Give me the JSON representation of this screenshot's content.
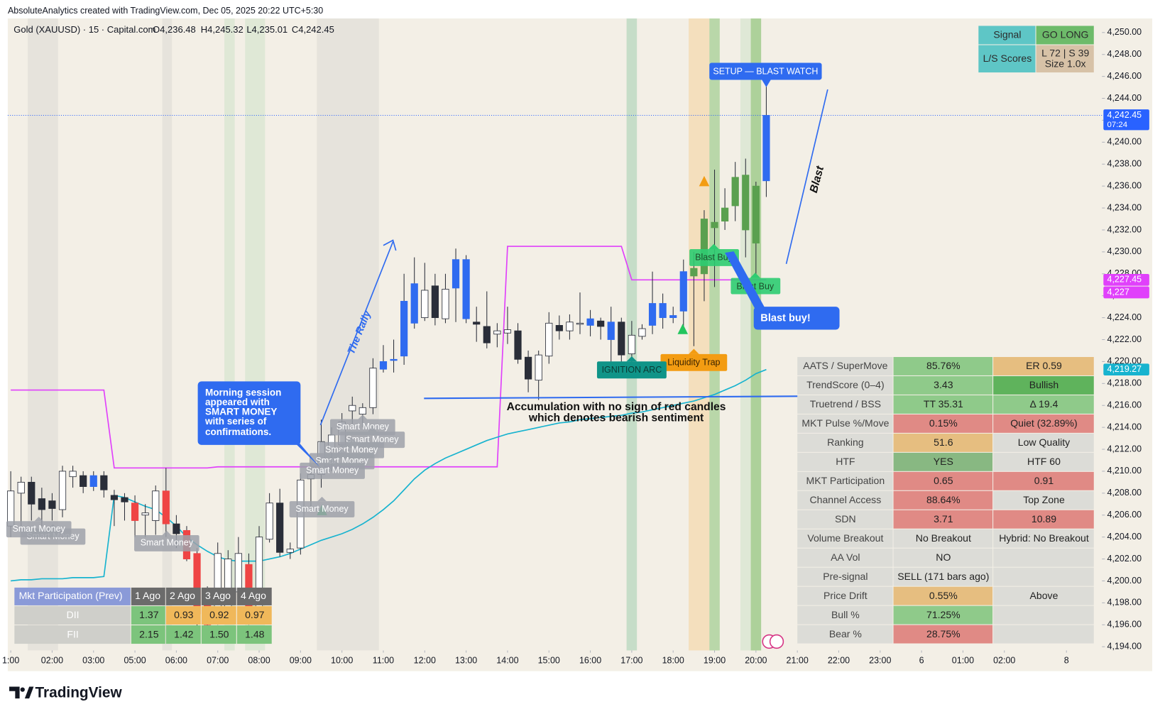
{
  "header": {
    "credit": "AbsoluteAnalytics created with TradingView.com, Dec 05, 2025 20:22 UTC+5:30",
    "symbol": "Gold (XAUUSD) · 15 · Capital.com",
    "ohlc": [
      "O4,236.48",
      "H4,245.32",
      "L4,235.01",
      "C4,242.45"
    ]
  },
  "footer": {
    "brand": "TradingView"
  },
  "chart_data": {
    "type": "candlestick",
    "x": [
      0,
      1,
      2,
      3,
      4,
      5,
      6,
      7,
      8,
      9,
      10,
      11,
      12,
      13,
      14,
      15,
      16,
      17,
      18,
      19,
      20,
      21,
      22,
      23,
      24,
      25,
      26,
      27,
      28,
      29,
      30,
      31,
      32,
      33,
      34,
      35,
      36,
      37,
      38,
      39,
      40,
      41,
      42,
      43,
      44,
      45,
      46,
      47,
      48,
      49,
      50,
      51,
      52,
      53,
      54,
      55,
      56,
      57,
      58,
      59,
      60,
      61,
      62,
      63,
      64,
      65,
      66,
      67,
      68,
      69,
      70,
      71,
      72,
      73
    ],
    "open": [
      4205,
      4208,
      4209,
      4207.5,
      4207.3,
      4206.5,
      4209.5,
      4209.6,
      4208.6,
      4209.6,
      4207.8,
      4207.6,
      4207.1,
      4206,
      4205.5,
      4208.2,
      4205.2,
      4204.6,
      4202.5,
      4199,
      4196.5,
      4197,
      4199,
      4201.5,
      4197.5,
      4203.8,
      4207.1,
      4202.6,
      4203,
      4209.3,
      4209.7,
      4212,
      4212.4,
      4215.5,
      4215.2,
      4215.8,
      4219.3,
      4220.1,
      4220.5,
      4223.5,
      4224,
      4226.9,
      4223.9,
      4226.7,
      4229.3,
      4223.6,
      4223.2,
      4222.5,
      4222.6,
      4222.8,
      4220.4,
      4218.3,
      4220.5,
      4223.3,
      4222.8,
      4223.4,
      4223.3,
      4223.7,
      4223.6,
      4223.6,
      4220.7,
      4222.3,
      4223.3,
      4225.3,
      4224.2,
      4224.6,
      4227.8,
      4228,
      4232.2,
      4232.8,
      4234.2,
      4237,
      4236,
      4236.48
    ],
    "high": [
      4210,
      4209.5,
      4209.5,
      4208.5,
      4208,
      4210.5,
      4210.5,
      4210,
      4210,
      4210,
      4208.3,
      4208,
      4207.8,
      4207,
      4208.7,
      4210.3,
      4206,
      4205,
      4203,
      4199.5,
      4203.5,
      4202.8,
      4204,
      4202.5,
      4205,
      4208,
      4208.4,
      4203.5,
      4209.8,
      4210.5,
      4214.7,
      4214,
      4215.3,
      4216.8,
      4216.2,
      4220.3,
      4221.5,
      4222,
      4228,
      4229.5,
      4229,
      4228,
      4228,
      4230.3,
      4229.7,
      4225,
      4226.4,
      4223.5,
      4225,
      4223.5,
      4221,
      4221,
      4224.5,
      4224.2,
      4224.3,
      4226.3,
      4224.7,
      4224,
      4225,
      4224,
      4223.7,
      4223.4,
      4228.2,
      4226.2,
      4225,
      4229.3,
      4230,
      4233.8,
      4237.5,
      4235.8,
      4238.2,
      4238.5,
      4236.4,
      4245.32
    ],
    "low": [
      4204,
      4205,
      4205.5,
      4205,
      4205.5,
      4205.8,
      4208.5,
      4208,
      4208.2,
      4207.6,
      4205,
      4205.5,
      4204,
      4204,
      4204.2,
      4204,
      4203,
      4201.8,
      4195.5,
      4195,
      4196,
      4196.3,
      4198,
      4196,
      4196.5,
      4203.5,
      4202.2,
      4202,
      4202.4,
      4206.5,
      4208.5,
      4210,
      4212,
      4214.3,
      4214,
      4215.2,
      4219,
      4219,
      4219.7,
      4223,
      4223.7,
      4223.3,
      4223.5,
      4223.6,
      4223.5,
      4221.8,
      4221.2,
      4221.3,
      4221.6,
      4219.8,
      4217.2,
      4216.5,
      4219.8,
      4222,
      4222,
      4222.5,
      4222.3,
      4222,
      4219.2,
      4219.5,
      4219.8,
      4222,
      4222.5,
      4223,
      4223.5,
      4223,
      4221.4,
      4225.5,
      4226.8,
      4232,
      4232.8,
      4229.5,
      4227.8,
      4235.01
    ],
    "close": [
      4208.2,
      4209,
      4207,
      4206.5,
      4206.6,
      4210,
      4210,
      4208.6,
      4209.6,
      4208.3,
      4207.4,
      4207.2,
      4205.5,
      4206.2,
      4208.2,
      4205.2,
      4204.3,
      4202,
      4197,
      4196,
      4202.5,
      4202,
      4202.5,
      4197.5,
      4204,
      4207.1,
      4202.6,
      4202.9,
      4209.2,
      4209.7,
      4212.7,
      4213.3,
      4214.5,
      4216,
      4215.8,
      4219.4,
      4220,
      4220.2,
      4225.5,
      4227.1,
      4226.5,
      4224,
      4226.6,
      4229.3,
      4223.9,
      4223.4,
      4221.7,
      4222.8,
      4222.9,
      4220.2,
      4218.4,
      4220.6,
      4223.5,
      4222.8,
      4223.6,
      4223.5,
      4223.9,
      4223.2,
      4222,
      4220.6,
      4222.4,
      4223,
      4225.3,
      4224,
      4224,
      4228.2,
      4228.5,
      4233,
      4232.7,
      4234,
      4236.8,
      4232,
      4230.8,
      4242.45
    ],
    "colors": [
      "#ffffff",
      "#ffffff",
      "#2a2e39",
      "#2a2e39",
      "#2a2e39",
      "#ffffff",
      "#ffffff",
      "#2a2e39",
      "#2f6bf0",
      "#2a2e39",
      "#2a2e39",
      "#2a2e39",
      "#ef4444",
      "#ffffff",
      "#ffffff",
      "#ef4444",
      "#2a2e39",
      "#ef4444",
      "#ef4444",
      "#ef4444",
      "#ffffff",
      "#ffffff",
      "#ffffff",
      "#ef4444",
      "#ffffff",
      "#ffffff",
      "#2a2e39",
      "#ffffff",
      "#ffffff",
      "#ffffff",
      "#ffffff",
      "#ffffff",
      "#ffffff",
      "#ffffff",
      "#ffffff",
      "#ffffff",
      "#2f6bf0",
      "#2f6bf0",
      "#2f6bf0",
      "#2f6bf0",
      "#ffffff",
      "#2a2e39",
      "#ffffff",
      "#2f6bf0",
      "#2f6bf0",
      "#2a2e39",
      "#2a2e39",
      "#ffffff",
      "#ffffff",
      "#2a2e39",
      "#2a2e39",
      "#ffffff",
      "#ffffff",
      "#2a2e39",
      "#ffffff",
      "#ffffff",
      "#2f6bf0",
      "#2a2e39",
      "#2f6bf0",
      "#2a2e39",
      "#ffffff",
      "#ffffff",
      "#2f6bf0",
      "#2f6bf0",
      "#2f6bf0",
      "#2f6bf0",
      "#5aa04f",
      "#5aa04f",
      "#5aa04f",
      "#5aa04f",
      "#5aa04f",
      "#5aa04f",
      "#5aa04f",
      "#2f6bf0"
    ],
    "lines": [
      {
        "color": "#e040fb",
        "values": [
          4217.4,
          4217.4,
          4217.4,
          4217.4,
          4217.4,
          4217.4,
          4217.4,
          4217.4,
          4217.4,
          4217.4,
          4210.3,
          4210.3,
          4210.3,
          4210.3,
          4210.3,
          4210.3,
          4210.3,
          4210.3,
          4210.3,
          4210.3,
          4210.4,
          4210.4,
          4210.4,
          4210.4,
          4210.4,
          4210.4,
          4210.4,
          4210.4,
          4210.4,
          4210.4,
          4210.4,
          4210.4,
          4210.4,
          4210.4,
          4210.4,
          4210.4,
          4210.4,
          4210.4,
          4210.4,
          4210.4,
          4210.4,
          4210.4,
          4210.4,
          4210.4,
          4210.4,
          4210.4,
          4210.4,
          4210.4,
          4230.5,
          4230.5,
          4230.5,
          4230.5,
          4230.5,
          4230.5,
          4230.5,
          4230.5,
          4230.5,
          4230.5,
          4230.5,
          4230.5,
          4227.45,
          4227.45,
          4227.45,
          4227.45,
          4227.45,
          4227.45,
          4227.45,
          4227.45,
          4227.45,
          4227.45,
          4227.45,
          4227.45,
          4227.45,
          4227.45
        ]
      },
      {
        "color": "#17b3cf",
        "values": [
          4200,
          4200.1,
          4200.1,
          4200.2,
          4200.2,
          4200.2,
          4200.3,
          4200.3,
          4200.3,
          4200.4,
          4207.8,
          4207.6,
          4207.2,
          4206.8,
          4206.5,
          4205.8,
          4205,
          4204,
          4203.3,
          4202.7,
          4202.2,
          4201.9,
          4201.8,
          4201.8,
          4201.8,
          4202,
          4202.2,
          4202.5,
          4202.9,
          4203.3,
          4203.7,
          4204,
          4204.3,
          4204.7,
          4205.2,
          4205.8,
          4206.5,
          4207.3,
          4208.3,
          4209.3,
          4210.1,
          4210.7,
          4211.2,
          4211.6,
          4212,
          4212.4,
          4212.8,
          4213.1,
          4213.4,
          4213.6,
          4213.8,
          4214,
          4214.2,
          4214.4,
          4214.5,
          4214.7,
          4214.8,
          4214.9,
          4215,
          4215.1,
          4215.3,
          4215.4,
          4215.6,
          4215.8,
          4216,
          4216.2,
          4216.4,
          4216.7,
          4217,
          4217.4,
          4217.8,
          4218.3,
          4218.9,
          4219.27
        ]
      }
    ],
    "current_price": 4242.45,
    "price_labels": [
      {
        "value": 4242.45,
        "label": "4,242.45",
        "sub": "07:24",
        "color": "#2962ff"
      },
      {
        "value": 4227.45,
        "label": "4,227.45",
        "color": "#e040fb"
      },
      {
        "value": 4227,
        "label": "4,227",
        "color": "#e040fb"
      },
      {
        "value": 4219.27,
        "label": "4,219.27",
        "color": "#17b3cf"
      }
    ],
    "xlim": [
      -0.286,
      105.43
    ],
    "ylim": [
      4193.66,
      4251.28
    ],
    "xticks": [
      {
        "value": 0,
        "label": "1:00"
      },
      {
        "value": 4,
        "label": "02:00"
      },
      {
        "value": 8,
        "label": "03:00"
      },
      {
        "value": 12,
        "label": "05:00"
      },
      {
        "value": 16,
        "label": "06:00"
      },
      {
        "value": 20,
        "label": "07:00"
      },
      {
        "value": 24,
        "label": "08:00"
      },
      {
        "value": 28,
        "label": "09:00"
      },
      {
        "value": 32,
        "label": "10:00"
      },
      {
        "value": 36,
        "label": "11:00"
      },
      {
        "value": 40,
        "label": "12:00"
      },
      {
        "value": 44,
        "label": "13:00"
      },
      {
        "value": 48,
        "label": "14:00"
      },
      {
        "value": 52,
        "label": "15:00"
      },
      {
        "value": 56,
        "label": "16:00"
      },
      {
        "value": 60,
        "label": "17:00"
      },
      {
        "value": 64,
        "label": "18:00"
      },
      {
        "value": 68,
        "label": "19:00"
      },
      {
        "value": 72,
        "label": "20:00"
      },
      {
        "value": 76,
        "label": "21:00"
      },
      {
        "value": 80,
        "label": "22:00"
      },
      {
        "value": 84,
        "label": "23:00"
      },
      {
        "value": 88,
        "label": "6"
      },
      {
        "value": 92,
        "label": "01:00"
      },
      {
        "value": 96,
        "label": "02:00"
      },
      {
        "value": 102,
        "label": "8"
      }
    ],
    "yticks": [
      {
        "value": 4194,
        "label": "4,194.00"
      },
      {
        "value": 4196,
        "label": "4,196.00"
      },
      {
        "value": 4198,
        "label": "4,198.00"
      },
      {
        "value": 4200,
        "label": "4,200.00"
      },
      {
        "value": 4202,
        "label": "4,202.00"
      },
      {
        "value": 4204,
        "label": "4,204.00"
      },
      {
        "value": 4206,
        "label": "4,206.00"
      },
      {
        "value": 4208,
        "label": "4,208.00"
      },
      {
        "value": 4210,
        "label": "4,210.00"
      },
      {
        "value": 4212,
        "label": "4,212.00"
      },
      {
        "value": 4214,
        "label": "4,214.00"
      },
      {
        "value": 4216,
        "label": "4,216.00"
      },
      {
        "value": 4218,
        "label": "4,218.00"
      },
      {
        "value": 4220,
        "label": "4,220.00"
      },
      {
        "value": 4222,
        "label": "4,222.00"
      },
      {
        "value": 4224,
        "label": "4,224.00"
      },
      {
        "value": 4226,
        "label": "4,226.00"
      },
      {
        "value": 4228,
        "label": "4,228.00"
      },
      {
        "value": 4230,
        "label": "4,230.00"
      },
      {
        "value": 4232,
        "label": "4,232.00"
      },
      {
        "value": 4234,
        "label": "4,234.00"
      },
      {
        "value": 4236,
        "label": "4,236.00"
      },
      {
        "value": 4238,
        "label": "4,238.00"
      },
      {
        "value": 4240,
        "label": "4,240.00"
      },
      {
        "value": 4242,
        "label": "4,242.00"
      },
      {
        "value": 4244,
        "label": "4,244.00"
      },
      {
        "value": 4246,
        "label": "4,246.00"
      },
      {
        "value": 4248,
        "label": "4,248.00"
      },
      {
        "value": 4250,
        "label": "4,250.00"
      }
    ]
  },
  "annotations": {
    "setup": "SETUP — BLAST WATCH",
    "blast": "Blast",
    "blast_buy_note": "Blast buy!",
    "blast_buy": "Blast Buy",
    "liquidity_trap": "Liquidity Trap",
    "ignition": "IGNITION ARC",
    "accumulation": [
      "Accumulation with no sign of red candles",
      "which denotes bearish sentiment"
    ],
    "rally": "The Rally",
    "morning": [
      "Morning session",
      "appeared with",
      "SMART MONEY",
      "with series of",
      "confirmations."
    ],
    "smart_money": "Smart Money"
  },
  "signal_table": {
    "rows": [
      {
        "cells": [
          "Signal",
          "GO LONG"
        ],
        "colors": [
          "#5ec6c6",
          "#6dbb6a"
        ]
      },
      {
        "cells": [
          "L/S Scores",
          "L 72 | S 39",
          "Size 1.0x"
        ],
        "colors": [
          "#5ec6c6",
          "#d7c2a7"
        ]
      }
    ]
  },
  "stats_table": {
    "rows": [
      {
        "cells": [
          "AATS / SuperMove",
          "85.76%",
          "ER 0.59"
        ],
        "colors": [
          "#dcdcd7",
          "#8fca8a",
          "#e6be80"
        ]
      },
      {
        "cells": [
          "TrendScore (0–4)",
          "3.43",
          "Bullish"
        ],
        "colors": [
          "#dcdcd7",
          "#8fca8a",
          "#5fb35c"
        ]
      },
      {
        "cells": [
          "Truetrend / BSS",
          "TT 35.31",
          "Δ 19.4"
        ],
        "colors": [
          "#dcdcd7",
          "#8fca8a",
          "#8fca8a"
        ]
      },
      {
        "cells": [
          "MKT Pulse %/Move",
          "0.15%",
          "Quiet (32.89%)"
        ],
        "colors": [
          "#dcdcd7",
          "#e08a85",
          "#e08a85"
        ]
      },
      {
        "cells": [
          "Ranking",
          "51.6",
          "Low Quality"
        ],
        "colors": [
          "#dcdcd7",
          "#e6be80",
          "#dcdcd7"
        ]
      },
      {
        "cells": [
          "HTF",
          "YES",
          "HTF 60"
        ],
        "colors": [
          "#dcdcd7",
          "#88b882",
          "#dcdcd7"
        ]
      },
      {
        "cells": [
          "MKT Participation",
          "0.65",
          "0.91"
        ],
        "colors": [
          "#dcdcd7",
          "#e08a85",
          "#e08a85"
        ]
      },
      {
        "cells": [
          "Channel Access",
          "88.64%",
          "Top Zone"
        ],
        "colors": [
          "#dcdcd7",
          "#e08a85",
          "#dcdcd7"
        ]
      },
      {
        "cells": [
          "SDN",
          "3.71",
          "10.89"
        ],
        "colors": [
          "#dcdcd7",
          "#e08a85",
          "#e08a85"
        ]
      },
      {
        "cells": [
          "Volume Breakout",
          "No Breakout",
          "Hybrid: No Breakout"
        ],
        "colors": [
          "#dcdcd7",
          "#dcdcd7",
          "#dcdcd7"
        ]
      },
      {
        "cells": [
          "AA Vol",
          "NO"
        ],
        "colors": [
          "#dcdcd7",
          "#dcdcd7",
          "#dcdcd7"
        ]
      },
      {
        "cells": [
          "Pre-signal",
          "SELL (171 bars ago)"
        ],
        "colors": [
          "#dcdcd7",
          "#dcdcd7",
          "#dcdcd7"
        ]
      },
      {
        "cells": [
          "Price Drift",
          "0.55%",
          "Above"
        ],
        "colors": [
          "#dcdcd7",
          "#e6be80",
          "#dcdcd7"
        ]
      },
      {
        "cells": [
          "Bull %",
          "71.25%"
        ],
        "colors": [
          "#dcdcd7",
          "#8fca8a",
          "#dcdcd7"
        ]
      },
      {
        "cells": [
          "Bear %",
          "28.75%"
        ],
        "colors": [
          "#dcdcd7",
          "#e08a85",
          "#dcdcd7"
        ]
      }
    ]
  },
  "participation_table": {
    "header": {
      "cells": [
        "Mkt Participation (Prev)",
        "1 Ago",
        "2 Ago",
        "3 Ago",
        "4 Ago"
      ],
      "colors": [
        "#8a9ad8",
        "#6b6b6b",
        "#6b6b6b",
        "#6b6b6b",
        "#6b6b6b"
      ]
    },
    "rows": [
      {
        "cells": [
          "DII",
          "1.37",
          "0.93",
          "0.92",
          "0.97"
        ],
        "colors": [
          "#cfcfca",
          "#7cc47c",
          "#f0b85a",
          "#f0b85a",
          "#f0b85a"
        ]
      },
      {
        "cells": [
          "FII",
          "2.15",
          "1.42",
          "1.50",
          "1.48"
        ],
        "colors": [
          "#cfcfca",
          "#7cc47c",
          "#7cc47c",
          "#7cc47c",
          "#7cc47c"
        ]
      }
    ]
  }
}
